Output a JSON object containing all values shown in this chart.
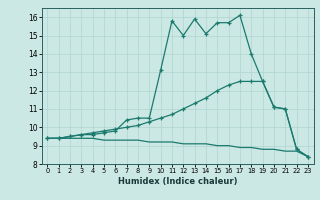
{
  "title": "",
  "xlabel": "Humidex (Indice chaleur)",
  "bg_color": "#cce8e4",
  "grid_color": "#aed4cf",
  "line_color": "#1a7a6e",
  "xlim": [
    -0.5,
    23.5
  ],
  "ylim": [
    8,
    16.5
  ],
  "xticks": [
    0,
    1,
    2,
    3,
    4,
    5,
    6,
    7,
    8,
    9,
    10,
    11,
    12,
    13,
    14,
    15,
    16,
    17,
    18,
    19,
    20,
    21,
    22,
    23
  ],
  "yticks": [
    8,
    9,
    10,
    11,
    12,
    13,
    14,
    15,
    16
  ],
  "line1_x": [
    0,
    1,
    2,
    3,
    4,
    5,
    6,
    7,
    8,
    9,
    10,
    11,
    12,
    13,
    14,
    15,
    16,
    17,
    18,
    19,
    20,
    21,
    22,
    23
  ],
  "line1_y": [
    9.4,
    9.4,
    9.5,
    9.6,
    9.6,
    9.7,
    9.8,
    10.4,
    10.5,
    10.5,
    13.1,
    15.8,
    15.0,
    15.9,
    15.1,
    15.7,
    15.7,
    16.1,
    14.0,
    12.5,
    11.1,
    11.0,
    8.8,
    8.4
  ],
  "line2_x": [
    0,
    1,
    2,
    3,
    4,
    5,
    6,
    7,
    8,
    9,
    10,
    11,
    12,
    13,
    14,
    15,
    16,
    17,
    18,
    19,
    20,
    21,
    22,
    23
  ],
  "line2_y": [
    9.4,
    9.4,
    9.5,
    9.6,
    9.7,
    9.8,
    9.9,
    10.0,
    10.1,
    10.3,
    10.5,
    10.7,
    11.0,
    11.3,
    11.6,
    12.0,
    12.3,
    12.5,
    12.5,
    12.5,
    11.1,
    11.0,
    8.8,
    8.4
  ],
  "line3_x": [
    0,
    1,
    2,
    3,
    4,
    5,
    6,
    7,
    8,
    9,
    10,
    11,
    12,
    13,
    14,
    15,
    16,
    17,
    18,
    19,
    20,
    21,
    22,
    23
  ],
  "line3_y": [
    9.4,
    9.4,
    9.4,
    9.4,
    9.4,
    9.3,
    9.3,
    9.3,
    9.3,
    9.2,
    9.2,
    9.2,
    9.1,
    9.1,
    9.1,
    9.0,
    9.0,
    8.9,
    8.9,
    8.8,
    8.8,
    8.7,
    8.7,
    8.4
  ]
}
